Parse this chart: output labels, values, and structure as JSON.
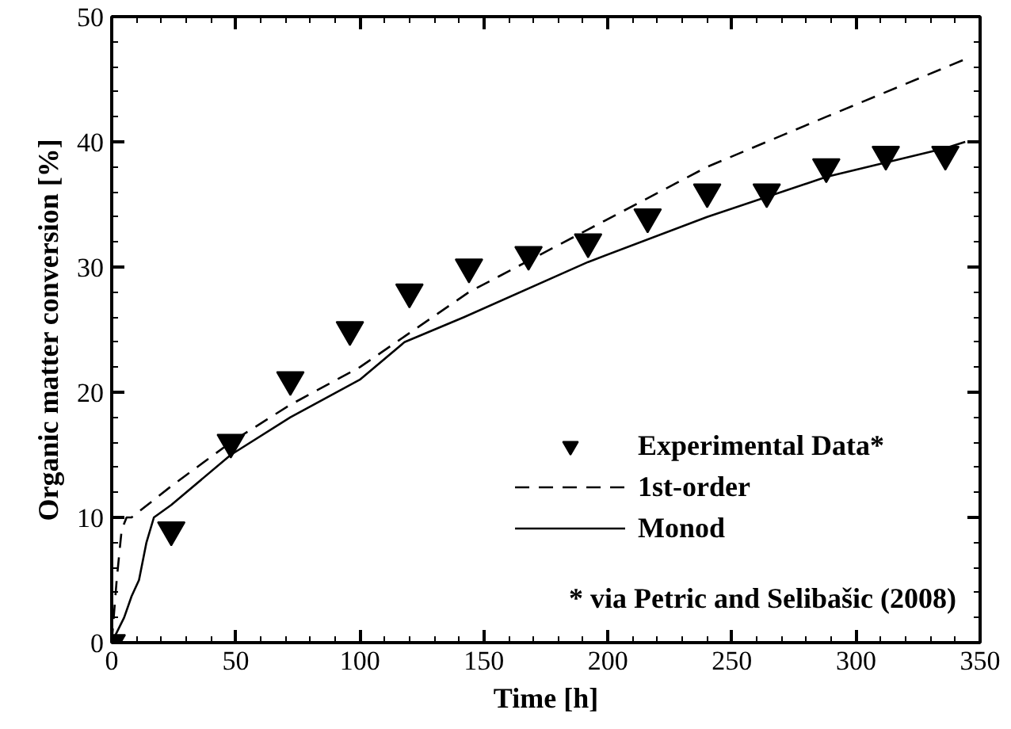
{
  "chart_data": {
    "type": "line",
    "xlabel": "Time [h]",
    "ylabel": "Organic matter conversion [%]",
    "xlim": [
      0,
      350
    ],
    "ylim": [
      0,
      50
    ],
    "xticks": [
      0,
      50,
      100,
      150,
      200,
      250,
      300,
      350
    ],
    "yticks": [
      0,
      10,
      20,
      30,
      40,
      50
    ],
    "grid": false,
    "legend": "bottom right",
    "annotations": [
      "* via Petric and Selibašic (2008)"
    ],
    "series": [
      {
        "name": "Experimental Data*",
        "type": "scatter",
        "marker": "triangle",
        "color": "#000000",
        "x": [
          0,
          24,
          48,
          72,
          96,
          120,
          144,
          168,
          192,
          216,
          240,
          264,
          288,
          312,
          336
        ],
        "values": [
          0,
          9,
          16,
          21,
          25,
          28,
          30,
          31,
          32,
          34,
          36,
          36,
          38,
          39,
          39
        ]
      },
      {
        "name": "1st-order",
        "line_style": "dashed",
        "color": "#000000",
        "x": [
          0,
          2,
          4,
          6,
          8,
          24,
          48,
          72,
          100,
          144,
          192,
          240,
          288,
          344
        ],
        "values": [
          0,
          5,
          9,
          10,
          10,
          12.5,
          16,
          19,
          22,
          28,
          33,
          38,
          42,
          46.6
        ]
      },
      {
        "name": "Monod",
        "line_style": "solid",
        "color": "#000000",
        "x": [
          0,
          5,
          8,
          11,
          14,
          17,
          24,
          48,
          72,
          100,
          118,
          142,
          192,
          240,
          288,
          336,
          344
        ],
        "values": [
          0,
          2,
          3.7,
          5,
          8,
          10,
          11,
          15,
          18,
          21,
          24,
          26,
          30.4,
          34,
          37.2,
          39.5,
          40
        ]
      }
    ]
  }
}
